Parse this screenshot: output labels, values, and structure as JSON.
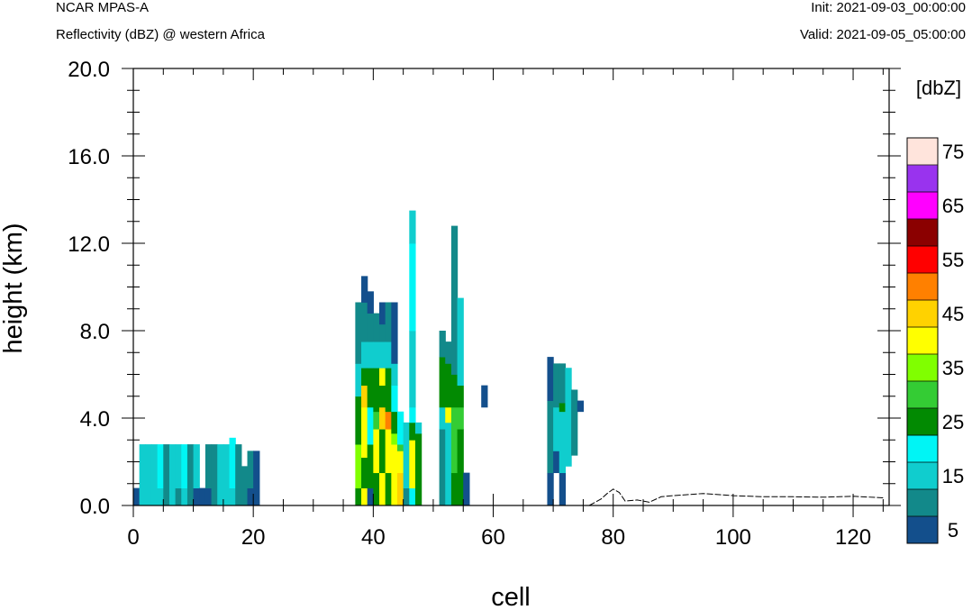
{
  "header": {
    "model": "NCAR MPAS-A",
    "subtitle": "Reflectivity (dBZ) @ western Africa",
    "init": "Init: 2021-09-03_00:00:00",
    "valid": "Valid: 2021-09-05_05:00:00"
  },
  "chart_data": {
    "type": "heatmap",
    "title": "Reflectivity (dBZ) @ western Africa",
    "xlabel": "cell",
    "ylabel": "height (km)",
    "xlim": [
      0,
      126
    ],
    "ylim": [
      0,
      20
    ],
    "x_ticks": [
      0,
      20,
      40,
      60,
      80,
      100,
      120
    ],
    "y_ticks": [
      0,
      4,
      8,
      12,
      16,
      20
    ],
    "y_tick_labels": [
      "0.0",
      "4.0",
      "8.0",
      "12.0",
      "16.0",
      "20.0"
    ],
    "colorbar": {
      "unit_label": "[dbZ]",
      "tick_labels": [
        "5",
        "15",
        "25",
        "35",
        "45",
        "55",
        "65",
        "75"
      ],
      "levels": [
        5,
        10,
        15,
        20,
        25,
        30,
        35,
        40,
        45,
        50,
        55,
        60,
        65,
        70,
        75
      ],
      "colors": [
        "#134f8c",
        "#12898a",
        "#10cdce",
        "#00f5f5",
        "#028a02",
        "#34cc34",
        "#80ff00",
        "#ffff00",
        "#ffd200",
        "#ff8000",
        "#ff0000",
        "#8b0000",
        "#ff00ff",
        "#9933ee",
        "#ffe4dc"
      ]
    },
    "columns": [
      {
        "cell": 0,
        "segments": [
          [
            0.0,
            0.8,
            5
          ]
        ]
      },
      {
        "cell": 1,
        "segments": [
          [
            0.0,
            2.8,
            15
          ]
        ]
      },
      {
        "cell": 2,
        "segments": [
          [
            0.0,
            2.8,
            15
          ]
        ]
      },
      {
        "cell": 3,
        "segments": [
          [
            0.0,
            2.8,
            15
          ]
        ]
      },
      {
        "cell": 4,
        "segments": [
          [
            0.0,
            0.8,
            15
          ],
          [
            0.8,
            2.8,
            20
          ]
        ]
      },
      {
        "cell": 5,
        "segments": [
          [
            0.0,
            2.8,
            10
          ]
        ]
      },
      {
        "cell": 6,
        "segments": [
          [
            0.0,
            2.8,
            15
          ]
        ]
      },
      {
        "cell": 7,
        "segments": [
          [
            0.0,
            0.8,
            10
          ],
          [
            0.8,
            2.8,
            15
          ]
        ]
      },
      {
        "cell": 8,
        "segments": [
          [
            0.0,
            0.8,
            15
          ],
          [
            0.8,
            2.8,
            20
          ]
        ]
      },
      {
        "cell": 9,
        "segments": [
          [
            0.0,
            2.8,
            10
          ]
        ]
      },
      {
        "cell": 10,
        "segments": [
          [
            0.0,
            0.8,
            5
          ],
          [
            0.8,
            2.8,
            15
          ]
        ]
      },
      {
        "cell": 11,
        "segments": [
          [
            0.0,
            0.8,
            5
          ]
        ]
      },
      {
        "cell": 12,
        "segments": [
          [
            0.0,
            0.8,
            5
          ],
          [
            0.8,
            2.8,
            10
          ]
        ]
      },
      {
        "cell": 13,
        "segments": [
          [
            0.0,
            2.8,
            10
          ]
        ]
      },
      {
        "cell": 14,
        "segments": [
          [
            0.0,
            2.8,
            15
          ]
        ]
      },
      {
        "cell": 15,
        "segments": [
          [
            0.0,
            2.8,
            15
          ]
        ]
      },
      {
        "cell": 16,
        "segments": [
          [
            0.0,
            0.8,
            15
          ],
          [
            0.8,
            2.8,
            20
          ],
          [
            2.8,
            3.1,
            20
          ]
        ]
      },
      {
        "cell": 17,
        "segments": [
          [
            0.0,
            2.8,
            10
          ]
        ]
      },
      {
        "cell": 18,
        "segments": [
          [
            0.0,
            1.8,
            10
          ]
        ]
      },
      {
        "cell": 19,
        "segments": [
          [
            0.0,
            0.8,
            5
          ],
          [
            0.8,
            2.5,
            10
          ]
        ]
      },
      {
        "cell": 20,
        "segments": [
          [
            0.0,
            2.5,
            5
          ]
        ]
      },
      {
        "cell": 37,
        "segments": [
          [
            0.0,
            0.8,
            25
          ],
          [
            0.8,
            2.8,
            35
          ],
          [
            2.8,
            5.0,
            25
          ],
          [
            5.0,
            6.5,
            15
          ],
          [
            6.5,
            9.3,
            10
          ]
        ]
      },
      {
        "cell": 38,
        "segments": [
          [
            0.0,
            0.8,
            40
          ],
          [
            0.8,
            2.2,
            25
          ],
          [
            2.2,
            4.5,
            40
          ],
          [
            4.5,
            5.5,
            45
          ],
          [
            5.5,
            6.3,
            25
          ],
          [
            6.3,
            7.5,
            15
          ],
          [
            7.5,
            9.3,
            10
          ],
          [
            9.3,
            10.5,
            5
          ]
        ]
      },
      {
        "cell": 39,
        "segments": [
          [
            0.0,
            0.8,
            5
          ],
          [
            0.8,
            2.8,
            25
          ],
          [
            2.8,
            4.5,
            20
          ],
          [
            4.5,
            6.3,
            25
          ],
          [
            6.3,
            7.5,
            15
          ],
          [
            7.5,
            8.8,
            10
          ],
          [
            8.8,
            9.8,
            5
          ]
        ]
      },
      {
        "cell": 40,
        "segments": [
          [
            0.0,
            1.5,
            25
          ],
          [
            1.5,
            3.5,
            40
          ],
          [
            3.5,
            4.3,
            30
          ],
          [
            4.3,
            6.3,
            25
          ],
          [
            6.3,
            7.5,
            15
          ],
          [
            7.5,
            8.8,
            10
          ]
        ]
      },
      {
        "cell": 41,
        "segments": [
          [
            0.0,
            1.5,
            40
          ],
          [
            1.5,
            3.5,
            25
          ],
          [
            3.5,
            4.5,
            45
          ],
          [
            4.5,
            5.5,
            25
          ],
          [
            5.5,
            6.3,
            40
          ],
          [
            6.3,
            7.5,
            15
          ],
          [
            7.5,
            8.3,
            10
          ],
          [
            8.3,
            9.3,
            5
          ]
        ]
      },
      {
        "cell": 42,
        "segments": [
          [
            0.0,
            1.5,
            25
          ],
          [
            1.5,
            3.5,
            40
          ],
          [
            3.5,
            4.3,
            50
          ],
          [
            4.3,
            6.3,
            25
          ],
          [
            6.3,
            7.5,
            15
          ],
          [
            7.5,
            9.3,
            10
          ]
        ]
      },
      {
        "cell": 43,
        "segments": [
          [
            0.0,
            2.8,
            40
          ],
          [
            2.8,
            3.3,
            35
          ],
          [
            3.3,
            4.3,
            25
          ],
          [
            4.3,
            5.5,
            20
          ],
          [
            5.5,
            6.5,
            15
          ],
          [
            6.5,
            9.3,
            5
          ]
        ]
      },
      {
        "cell": 44,
        "segments": [
          [
            0.0,
            1.5,
            45
          ],
          [
            1.5,
            2.5,
            40
          ],
          [
            2.5,
            2.8,
            30
          ],
          [
            2.8,
            4.3,
            20
          ]
        ]
      },
      {
        "cell": 45,
        "segments": [
          [
            0.0,
            0.8,
            10
          ],
          [
            0.8,
            3.8,
            15
          ]
        ]
      },
      {
        "cell": 46,
        "segments": [
          [
            0.0,
            0.8,
            20
          ],
          [
            0.8,
            3.0,
            40
          ],
          [
            3.0,
            3.8,
            25
          ],
          [
            3.8,
            4.5,
            20
          ],
          [
            4.5,
            8.0,
            15
          ],
          [
            8.0,
            12.0,
            20
          ],
          [
            12.0,
            13.5,
            15
          ]
        ]
      },
      {
        "cell": 47,
        "segments": [
          [
            0.0,
            3.3,
            25
          ],
          [
            3.3,
            3.8,
            15
          ]
        ]
      },
      {
        "cell": 51,
        "segments": [
          [
            0.0,
            3.5,
            10
          ],
          [
            3.5,
            4.5,
            15
          ],
          [
            4.5,
            6.8,
            25
          ],
          [
            6.8,
            8.0,
            10
          ]
        ]
      },
      {
        "cell": 52,
        "segments": [
          [
            0.0,
            3.8,
            15
          ],
          [
            3.8,
            4.5,
            40
          ],
          [
            4.5,
            6.5,
            25
          ],
          [
            6.5,
            7.5,
            10
          ]
        ]
      },
      {
        "cell": 53,
        "segments": [
          [
            0.0,
            1.5,
            25
          ],
          [
            1.5,
            4.5,
            30
          ],
          [
            4.5,
            6.0,
            25
          ],
          [
            6.0,
            12.8,
            10
          ]
        ]
      },
      {
        "cell": 54,
        "segments": [
          [
            0.0,
            3.5,
            25
          ],
          [
            3.5,
            4.5,
            30
          ],
          [
            4.5,
            5.5,
            25
          ],
          [
            5.5,
            9.5,
            15
          ]
        ]
      },
      {
        "cell": 55,
        "segments": [
          [
            0.0,
            1.5,
            5
          ]
        ]
      },
      {
        "cell": 58,
        "segments": [
          [
            4.5,
            5.5,
            5
          ]
        ]
      },
      {
        "cell": 69,
        "segments": [
          [
            0.0,
            1.5,
            5
          ],
          [
            1.5,
            4.8,
            10
          ],
          [
            4.8,
            6.8,
            5
          ]
        ]
      },
      {
        "cell": 70,
        "segments": [
          [
            1.5,
            2.5,
            5
          ],
          [
            2.5,
            4.5,
            15
          ],
          [
            4.5,
            6.5,
            10
          ]
        ]
      },
      {
        "cell": 71,
        "segments": [
          [
            0.0,
            1.5,
            5
          ],
          [
            1.5,
            4.3,
            15
          ],
          [
            4.3,
            4.7,
            25
          ],
          [
            4.7,
            6.5,
            10
          ]
        ]
      },
      {
        "cell": 72,
        "segments": [
          [
            1.8,
            4.5,
            15
          ],
          [
            4.5,
            6.3,
            15
          ]
        ]
      },
      {
        "cell": 73,
        "segments": [
          [
            2.3,
            4.5,
            10
          ],
          [
            4.5,
            5.3,
            10
          ]
        ]
      },
      {
        "cell": 74,
        "segments": [
          [
            4.3,
            4.8,
            5
          ]
        ]
      }
    ],
    "terrain": {
      "x": [
        76,
        78,
        79,
        80,
        81,
        82,
        84,
        86,
        88,
        90,
        95,
        100,
        105,
        110,
        115,
        120,
        125
      ],
      "y": [
        0.0,
        0.3,
        0.55,
        0.75,
        0.6,
        0.2,
        0.25,
        0.15,
        0.4,
        0.45,
        0.55,
        0.45,
        0.4,
        0.4,
        0.38,
        0.42,
        0.35
      ]
    }
  }
}
